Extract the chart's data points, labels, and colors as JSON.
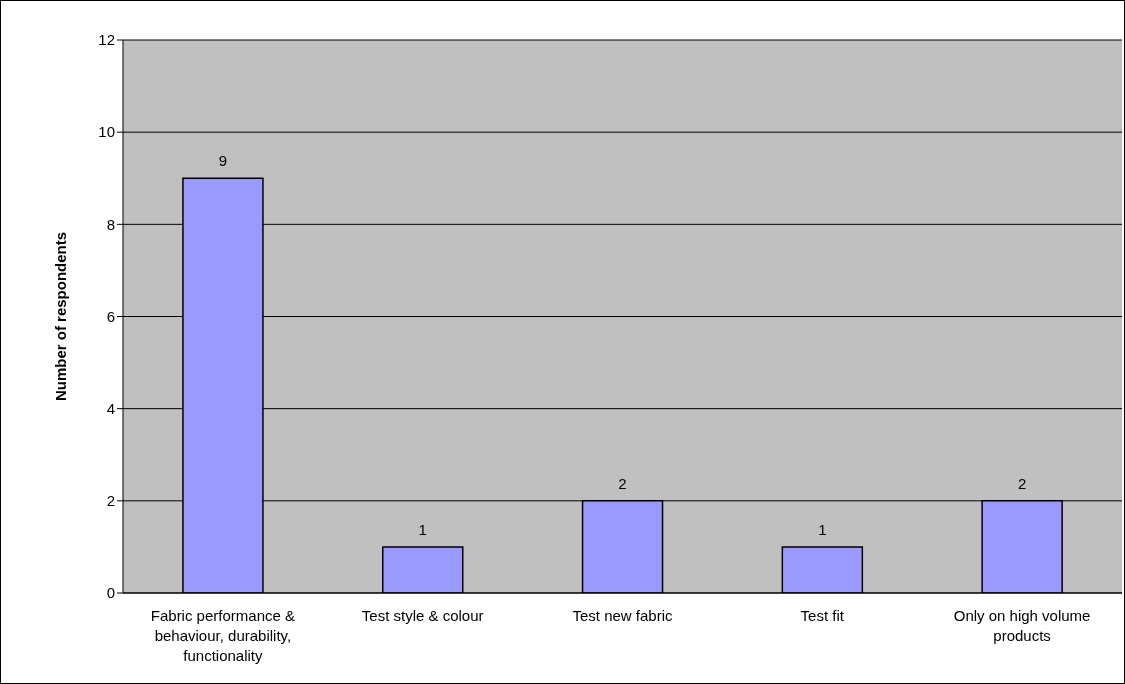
{
  "chart_data": {
    "type": "bar",
    "ylabel": "Number of respondents",
    "categories": [
      "Fabric performance & behaviour, durability, functionality",
      "Test style & colour",
      "Test new fabric",
      "Test fit",
      "Only on high volume products"
    ],
    "values": [
      9,
      1,
      2,
      1,
      2
    ],
    "color": "#9999ff",
    "ylim": [
      0,
      12
    ],
    "yticks": [
      0,
      2,
      4,
      6,
      8,
      10,
      12
    ],
    "grid": "y",
    "data_labels": true
  }
}
